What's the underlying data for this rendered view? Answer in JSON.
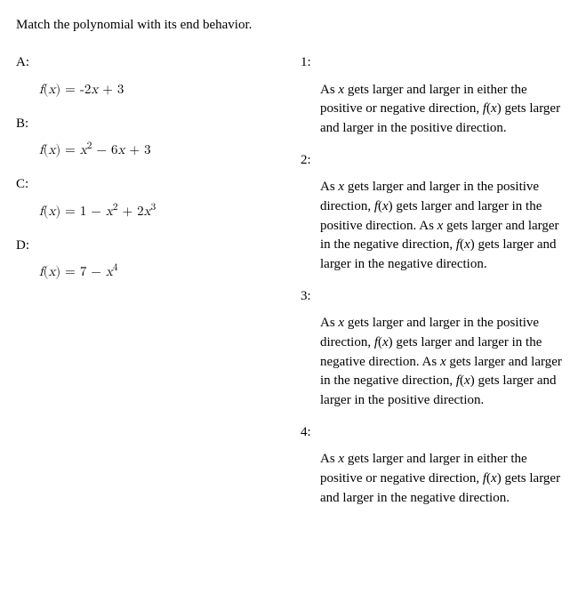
{
  "question": "Match the polynomial with its end behavior.",
  "left": {
    "A": {
      "label": "A:",
      "formula_html": "<span class='var'>f</span>(<span class='var'>x</span>) = -2<span class='var'>x</span> + 3"
    },
    "B": {
      "label": "B:",
      "formula_html": "<span class='var'>f</span>(<span class='var'>x</span>) = <span class='var'>x</span><sup>2</sup> &minus; 6<span class='var'>x</span> + 3"
    },
    "C": {
      "label": "C:",
      "formula_html": "<span class='var'>f</span>(<span class='var'>x</span>) = 1 &minus; <span class='var'>x</span><sup>2</sup> + 2<span class='var'>x</span><sup>3</sup>"
    },
    "D": {
      "label": "D:",
      "formula_html": "<span class='var'>f</span>(<span class='var'>x</span>) = 7 &minus; <span class='var'>x</span><sup>4</sup>"
    }
  },
  "right": {
    "1": {
      "label": "1:",
      "text_html": "As <span class='var'>x</span> gets larger and larger in either the positive or negative direction, <span class='var'>f</span>(<span class='var'>x</span>) gets larger and larger in the positive direction."
    },
    "2": {
      "label": "2:",
      "text_html": "As <span class='var'>x</span> gets larger and larger in the positive direction, <span class='var'>f</span>(<span class='var'>x</span>) gets larger and larger in the positive direction. As <span class='var'>x</span> gets larger and larger in the negative direction, <span class='var'>f</span>(<span class='var'>x</span>) gets larger and larger in the negative direction."
    },
    "3": {
      "label": "3:",
      "text_html": "As <span class='var'>x</span> gets larger and larger in the positive direction, <span class='var'>f</span>(<span class='var'>x</span>) gets larger and larger in the negative direction. As <span class='var'>x</span> gets larger and larger in the negative direction, <span class='var'>f</span>(<span class='var'>x</span>) gets larger and larger in the positive direction."
    },
    "4": {
      "label": "4:",
      "text_html": "As <span class='var'>x</span> gets larger and larger in either the positive or negative direction, <span class='var'>f</span>(<span class='var'>x</span>) gets larger and larger in the negative direction."
    }
  }
}
